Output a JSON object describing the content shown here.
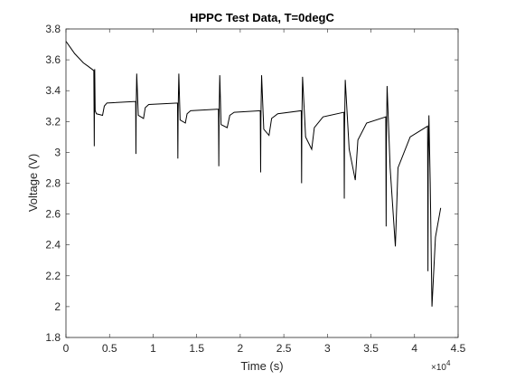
{
  "chart_data": {
    "type": "line",
    "title": "HPPC Test Data, T=0degC",
    "x_label": "Time (s)",
    "y_label": "Voltage (V)",
    "x_multiplier": {
      "base": "×10",
      "power": "4"
    },
    "xlim": [
      0,
      45000
    ],
    "xticks": [
      0,
      {
        "value": 5000,
        "label": "0.5"
      },
      {
        "value": 10000,
        "label": "1"
      },
      {
        "value": 15000,
        "label": "1.5"
      },
      {
        "value": 20000,
        "label": "2"
      },
      {
        "value": 25000,
        "label": "2.5"
      },
      {
        "value": 30000,
        "label": "3"
      },
      {
        "value": 35000,
        "label": "3.5"
      },
      {
        "value": 40000,
        "label": "4"
      },
      {
        "value": 45000,
        "label": "4.5"
      }
    ],
    "ylim": [
      1.8,
      3.8
    ],
    "yticks": [
      1.8,
      2,
      2.2,
      2.4,
      2.6,
      2.8,
      3,
      3.2,
      3.4,
      3.6,
      3.8
    ],
    "color": "#000000",
    "x": [
      0,
      500,
      1000,
      1500,
      2000,
      2500,
      3200,
      3250,
      3280,
      3300,
      3350,
      3500,
      4200,
      4400,
      4700,
      8000,
      8030,
      8060,
      8120,
      8300,
      8900,
      9100,
      9500,
      12800,
      12840,
      12870,
      12950,
      13100,
      13700,
      13900,
      14300,
      17500,
      17540,
      17570,
      17650,
      17800,
      18500,
      18800,
      19300,
      22300,
      22340,
      22370,
      22450,
      22700,
      23300,
      23600,
      24300,
      27000,
      27040,
      27070,
      27150,
      27500,
      28200,
      28500,
      29500,
      31900,
      31940,
      31970,
      32050,
      32500,
      33200,
      33500,
      34500,
      36700,
      36740,
      36770,
      36850,
      37200,
      37800,
      38100,
      39500,
      41500,
      41540,
      41570,
      41650,
      41800,
      42000,
      42400,
      43000
    ],
    "values": [
      3.72,
      3.68,
      3.64,
      3.61,
      3.58,
      3.56,
      3.53,
      3.04,
      3.5,
      3.54,
      3.27,
      3.25,
      3.24,
      3.3,
      3.32,
      3.33,
      2.99,
      3.3,
      3.51,
      3.24,
      3.22,
      3.29,
      3.31,
      3.32,
      2.96,
      3.26,
      3.51,
      3.21,
      3.19,
      3.25,
      3.27,
      3.28,
      2.91,
      3.22,
      3.5,
      3.18,
      3.16,
      3.24,
      3.26,
      3.27,
      2.87,
      3.22,
      3.5,
      3.15,
      3.11,
      3.22,
      3.25,
      3.27,
      2.8,
      3.2,
      3.49,
      3.1,
      3.02,
      3.16,
      3.23,
      3.26,
      2.7,
      3.15,
      3.47,
      3.02,
      2.82,
      3.08,
      3.19,
      3.23,
      2.52,
      3.05,
      3.43,
      2.9,
      2.39,
      2.9,
      3.1,
      3.17,
      2.23,
      2.9,
      3.24,
      2.8,
      2.0,
      2.45,
      2.64
    ]
  }
}
